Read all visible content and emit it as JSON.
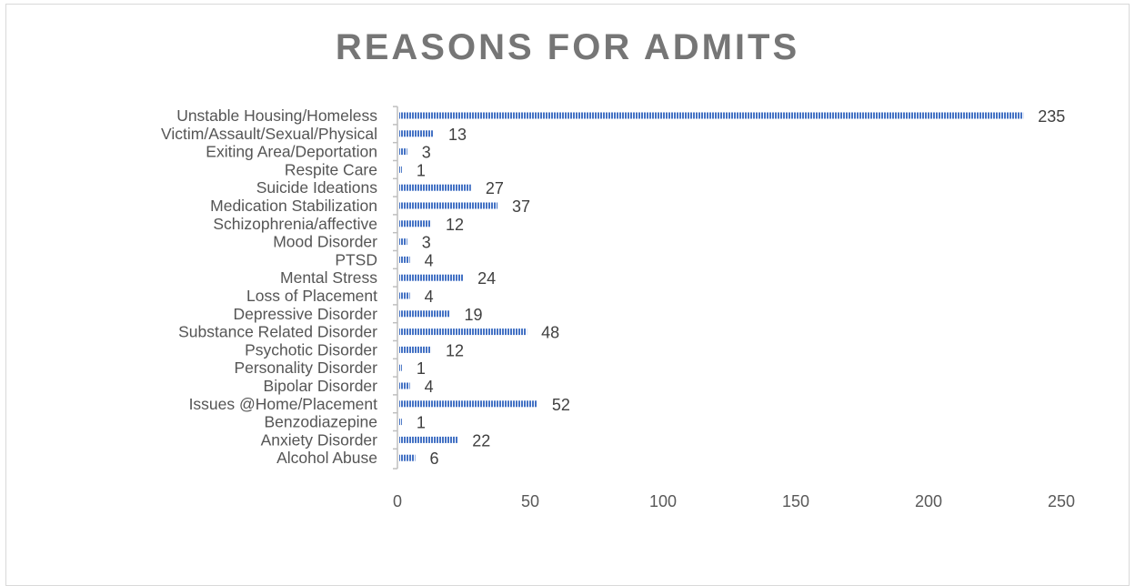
{
  "chart_data": {
    "type": "bar",
    "orientation": "horizontal",
    "title": "REASONS FOR ADMITS",
    "xlabel": "",
    "ylabel": "",
    "categories": [
      "Unstable Housing/Homeless",
      "Victim/Assault/Sexual/Physical",
      "Exiting Area/Deportation",
      "Respite Care",
      "Suicide Ideations",
      "Medication Stabilization",
      "Schizophrenia/affective",
      "Mood Disorder",
      "PTSD",
      "Mental Stress",
      "Loss of Placement",
      "Depressive Disorder",
      "Substance Related Disorder",
      "Psychotic Disorder",
      "Personality Disorder",
      "Bipolar Disorder",
      "Issues @Home/Placement",
      "Benzodiazepine",
      "Anxiety Disorder",
      "Alcohol Abuse"
    ],
    "values": [
      235,
      13,
      3,
      1,
      27,
      37,
      12,
      3,
      4,
      24,
      4,
      19,
      48,
      12,
      1,
      4,
      52,
      1,
      22,
      6
    ],
    "xlim": [
      0,
      250
    ],
    "xticks": [
      0,
      50,
      100,
      150,
      200,
      250
    ],
    "grid": false,
    "legend": "none",
    "data_labels": true,
    "bar_color": "#4472c4"
  }
}
